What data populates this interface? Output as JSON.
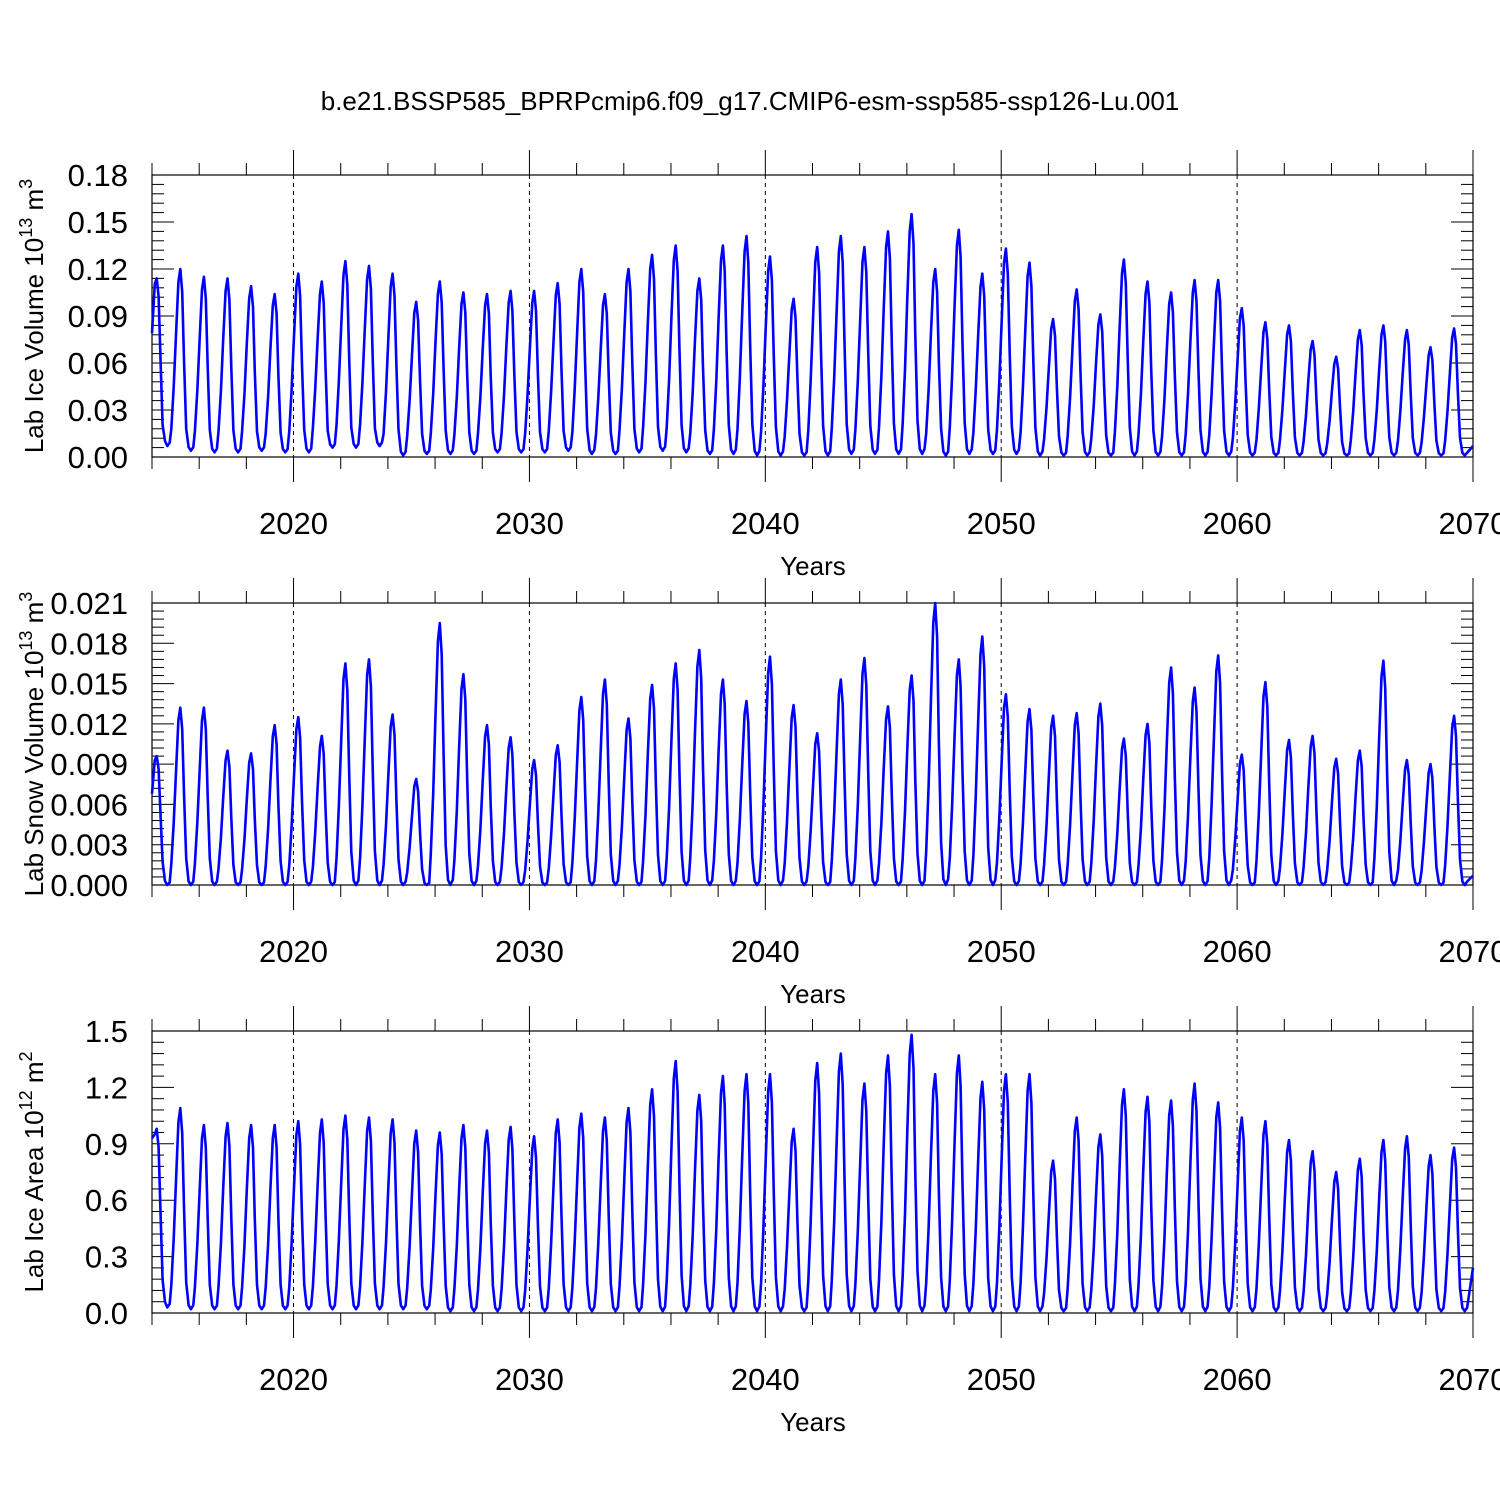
{
  "title": "b.e21.BSSP585_BPRPcmip6.f09_g17.CMIP6-esm-ssp585-ssp126-Lu.001",
  "colors": {
    "line": "#0000ff",
    "axis": "#000000",
    "grid": "#000000"
  },
  "chart_data": [
    {
      "type": "line",
      "name": "ice-volume",
      "ylabel_main": "Lab Ice Volume 10",
      "ylabel_exp": "13",
      "ylabel_unit": " m",
      "ylabel_unit_exp": "3",
      "xlabel": "Years",
      "xlim": [
        2014.0,
        2070.0
      ],
      "ylim": [
        0.0,
        0.18
      ],
      "xticks": [
        2020,
        2030,
        2040,
        2050,
        2060,
        2070
      ],
      "xtick_labels": [
        "2020",
        "2030",
        "2040",
        "2050",
        "2060",
        "2070"
      ],
      "yticks": [
        0.0,
        0.03,
        0.06,
        0.09,
        0.12,
        0.15,
        0.18
      ],
      "ytick_labels": [
        "0.00",
        "0.03",
        "0.06",
        "0.09",
        "0.12",
        "0.15",
        "0.18"
      ],
      "grid_x": [
        2020,
        2030,
        2040,
        2050,
        2060
      ],
      "start_year": 2014.0,
      "series": [
        {
          "name": "Lab Ice Volume",
          "annual_peaks": [
            0.114,
            0.12,
            0.115,
            0.114,
            0.109,
            0.104,
            0.117,
            0.112,
            0.125,
            0.122,
            0.117,
            0.099,
            0.112,
            0.105,
            0.104,
            0.106,
            0.106,
            0.111,
            0.12,
            0.104,
            0.12,
            0.129,
            0.135,
            0.114,
            0.135,
            0.141,
            0.128,
            0.101,
            0.134,
            0.141,
            0.134,
            0.144,
            0.155,
            0.12,
            0.145,
            0.117,
            0.133,
            0.124,
            0.088,
            0.107,
            0.091,
            0.126,
            0.112,
            0.105,
            0.113,
            0.113,
            0.095,
            0.086,
            0.084,
            0.074,
            0.064,
            0.081,
            0.084,
            0.081,
            0.07,
            0.082
          ],
          "annual_troughs": [
            0.007,
            0.004,
            0.003,
            0.003,
            0.004,
            0.003,
            0.003,
            0.006,
            0.006,
            0.007,
            0.001,
            0.002,
            0.002,
            0.002,
            0.003,
            0.003,
            0.003,
            0.004,
            0.002,
            0.002,
            0.003,
            0.004,
            0.003,
            0.002,
            0.002,
            0.001,
            0.001,
            0.001,
            0.001,
            0.002,
            0.002,
            0.002,
            0.002,
            0.001,
            0.002,
            0.002,
            0.002,
            0.001,
            0.001,
            0.001,
            0.001,
            0.001,
            0.001,
            0.001,
            0.001,
            0.001,
            0.001,
            0.001,
            0.001,
            0.001,
            0.001,
            0.001,
            0.001,
            0.001,
            0.001,
            0.001
          ],
          "start_value": 0.079,
          "end_value": 0.007
        }
      ]
    },
    {
      "type": "line",
      "name": "snow-volume",
      "ylabel_main": "Lab Snow Volume 10",
      "ylabel_exp": "13",
      "ylabel_unit": " m",
      "ylabel_unit_exp": "3",
      "xlabel": "Years",
      "xlim": [
        2014.0,
        2070.0
      ],
      "ylim": [
        0.0,
        0.021
      ],
      "xticks": [
        2020,
        2030,
        2040,
        2050,
        2060,
        2070
      ],
      "xtick_labels": [
        "2020",
        "2030",
        "2040",
        "2050",
        "2060",
        "2070"
      ],
      "yticks": [
        0.0,
        0.003,
        0.006,
        0.009,
        0.012,
        0.015,
        0.018,
        0.021
      ],
      "ytick_labels": [
        "0.000",
        "0.003",
        "0.006",
        "0.009",
        "0.012",
        "0.015",
        "0.018",
        "0.021"
      ],
      "grid_x": [
        2020,
        2030,
        2040,
        2050,
        2060
      ],
      "start_year": 2014.0,
      "series": [
        {
          "name": "Lab Snow Volume",
          "annual_peaks": [
            0.0096,
            0.0132,
            0.0132,
            0.01,
            0.0098,
            0.0119,
            0.0125,
            0.0111,
            0.0165,
            0.0168,
            0.0127,
            0.0079,
            0.0195,
            0.0157,
            0.0119,
            0.011,
            0.0093,
            0.0104,
            0.014,
            0.0153,
            0.0124,
            0.0149,
            0.0165,
            0.0175,
            0.0153,
            0.0137,
            0.017,
            0.0134,
            0.0113,
            0.0153,
            0.0169,
            0.0133,
            0.0156,
            0.021,
            0.0168,
            0.0185,
            0.0142,
            0.0131,
            0.0126,
            0.0128,
            0.0135,
            0.0109,
            0.012,
            0.0162,
            0.0147,
            0.0171,
            0.0097,
            0.0151,
            0.0108,
            0.0111,
            0.0094,
            0.01,
            0.0167,
            0.0093,
            0.009,
            0.0126
          ],
          "annual_troughs": [
            0.0,
            0.0,
            0.0,
            0.0,
            0.0,
            0.0,
            0.0,
            0.0,
            0.0,
            0.0,
            0.0,
            0.0,
            0.0,
            0.0,
            0.0,
            0.0,
            0.0,
            0.0,
            0.0,
            0.0,
            0.0,
            0.0,
            0.0,
            0.0,
            0.0,
            0.0,
            0.0,
            0.0,
            0.0,
            0.0,
            0.0,
            0.0,
            0.0,
            0.0,
            0.0,
            0.0,
            0.0,
            0.0,
            0.0,
            0.0,
            0.0,
            0.0,
            0.0,
            0.0,
            0.0,
            0.0,
            0.0,
            0.0,
            0.0,
            0.0,
            0.0,
            0.0,
            0.0,
            0.0,
            0.0,
            0.0
          ],
          "start_value": 0.0068,
          "end_value": 0.0007
        }
      ]
    },
    {
      "type": "line",
      "name": "ice-area",
      "ylabel_main": "Lab Ice Area 10",
      "ylabel_exp": "12",
      "ylabel_unit": " m",
      "ylabel_unit_exp": "2",
      "xlabel": "Years",
      "xlim": [
        2014.0,
        2070.0
      ],
      "ylim": [
        0.0,
        1.5
      ],
      "xticks": [
        2020,
        2030,
        2040,
        2050,
        2060,
        2070
      ],
      "xtick_labels": [
        "2020",
        "2030",
        "2040",
        "2050",
        "2060",
        "2070"
      ],
      "yticks": [
        0.0,
        0.3,
        0.6,
        0.9,
        1.2,
        1.5
      ],
      "ytick_labels": [
        "0.0",
        "0.3",
        "0.6",
        "0.9",
        "1.2",
        "1.5"
      ],
      "grid_x": [
        2020,
        2030,
        2040,
        2050,
        2060
      ],
      "start_year": 2014.0,
      "series": [
        {
          "name": "Lab Ice Area",
          "annual_peaks": [
            0.98,
            1.09,
            1.0,
            1.01,
            1.0,
            1.0,
            1.02,
            1.03,
            1.05,
            1.04,
            1.03,
            0.97,
            0.96,
            1.0,
            0.97,
            0.99,
            0.94,
            1.03,
            1.06,
            1.04,
            1.09,
            1.19,
            1.34,
            1.16,
            1.26,
            1.27,
            1.27,
            0.98,
            1.33,
            1.38,
            1.22,
            1.37,
            1.48,
            1.27,
            1.37,
            1.23,
            1.27,
            1.27,
            0.81,
            1.04,
            0.95,
            1.19,
            1.15,
            1.13,
            1.22,
            1.12,
            1.04,
            1.02,
            0.92,
            0.86,
            0.75,
            0.82,
            0.92,
            0.94,
            0.84,
            0.88
          ],
          "annual_troughs": [
            0.03,
            0.02,
            0.02,
            0.02,
            0.02,
            0.02,
            0.02,
            0.02,
            0.02,
            0.02,
            0.02,
            0.02,
            0.01,
            0.01,
            0.01,
            0.01,
            0.01,
            0.01,
            0.01,
            0.01,
            0.01,
            0.01,
            0.01,
            0.01,
            0.01,
            0.01,
            0.01,
            0.01,
            0.01,
            0.01,
            0.01,
            0.01,
            0.01,
            0.01,
            0.01,
            0.01,
            0.01,
            0.01,
            0.01,
            0.01,
            0.01,
            0.01,
            0.01,
            0.01,
            0.01,
            0.01,
            0.01,
            0.01,
            0.01,
            0.01,
            0.01,
            0.01,
            0.01,
            0.01,
            0.01,
            0.01
          ],
          "start_value": 0.93,
          "end_value": 0.24
        }
      ]
    }
  ]
}
